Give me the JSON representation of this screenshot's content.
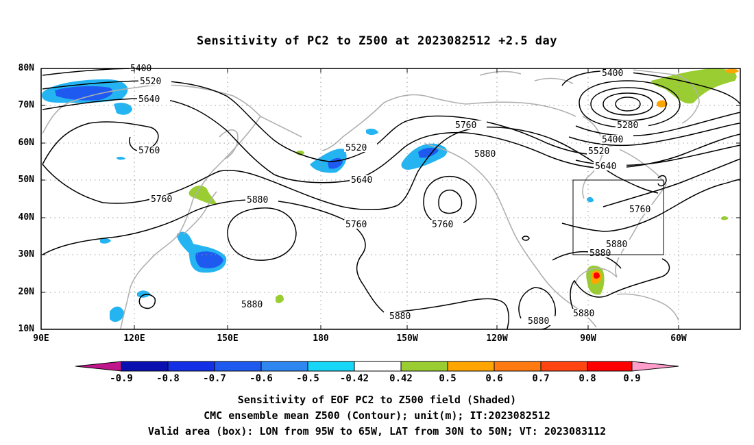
{
  "title": "Sensitivity of PC2 to Z500 at 2023082512 +2.5 day",
  "map": {
    "lat_ticks": [
      "80N",
      "70N",
      "60N",
      "50N",
      "40N",
      "30N",
      "20N",
      "10N"
    ],
    "lon_ticks": [
      "90E",
      "120E",
      "150E",
      "180",
      "150W",
      "120W",
      "90W",
      "60W"
    ],
    "contour_labels": [
      "5400",
      "5520",
      "5640",
      "5760",
      "5880",
      "5280"
    ],
    "valid_box": {
      "lon_range": [
        "95W",
        "65W"
      ],
      "lat_range": [
        "30N",
        "50N"
      ]
    },
    "colors": {
      "gridline": "#999999",
      "coastline": "#b0b0b0",
      "contour": "#000000"
    }
  },
  "colorbar": {
    "ticks": [
      "-0.9",
      "-0.8",
      "-0.7",
      "-0.6",
      "-0.5",
      "-0.42",
      "0.42",
      "0.5",
      "0.6",
      "0.7",
      "0.8",
      "0.9"
    ],
    "colors": [
      "#c0168c",
      "#0a10b0",
      "#1430e6",
      "#1f5af0",
      "#2e86f0",
      "#24b4f2",
      "#17d6f7",
      "#ffffff",
      "#9acd32",
      "#ffa500",
      "#ff7a10",
      "#ff4512",
      "#ff0000",
      "#ff9ecb"
    ]
  },
  "captions": {
    "line1": "Sensitivity of EOF PC2 to Z500 field (Shaded)",
    "line2": "CMC ensemble mean Z500 (Contour); unit(m); IT:2023082512",
    "line3": "Valid area (box): LON from 95W to 65W, LAT from 30N to 50N; VT: 2023083112"
  }
}
